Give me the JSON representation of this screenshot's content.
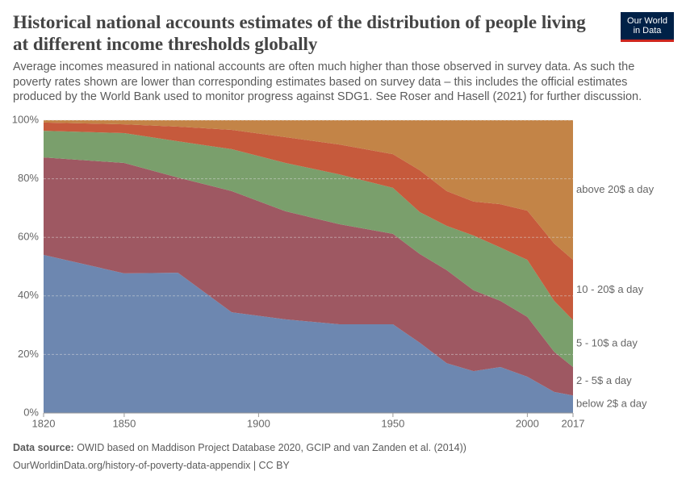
{
  "chart_data": {
    "type": "stacked-area",
    "title": "Historical national accounts estimates of the distribution of people living at different income thresholds globally",
    "subtitle": "Average incomes measured in national accounts are often much higher than those observed in survey data. As such the poverty rates shown are lower than corresponding estimates based on survey data – this includes the official estimates produced by the World Bank used to monitor progress against SDG1. See Roser and Hasell (2021) for further discussion.",
    "logo": [
      "Our World",
      "in Data"
    ],
    "x": [
      1820,
      1850,
      1870,
      1890,
      1910,
      1930,
      1950,
      1960,
      1970,
      1980,
      1990,
      2000,
      2010,
      2017
    ],
    "series": [
      {
        "name": "below 2$ a day",
        "color": "#6d87b0",
        "label_color": "#4c6a9c",
        "values": [
          54,
          47.7,
          47.9,
          34.4,
          32,
          30.3,
          30.3,
          24,
          17,
          14.3,
          15.7,
          12.4,
          7.2,
          6
        ]
      },
      {
        "name": "2 - 5$ a day",
        "color": "#9e5862",
        "label_color": "#883039",
        "values": [
          33.3,
          37.7,
          32.5,
          41.4,
          36.9,
          34.2,
          30.9,
          30.3,
          31.8,
          27.6,
          22.6,
          20.4,
          13.7,
          9.7
        ]
      },
      {
        "name": "5 - 10$ a day",
        "color": "#7a9f6c",
        "label_color": "#578145",
        "values": [
          9.1,
          10.2,
          12.4,
          14.3,
          16.5,
          17,
          15.7,
          14.3,
          15.1,
          18.7,
          18.2,
          19.5,
          17.4,
          16
        ]
      },
      {
        "name": "10 - 20$ a day",
        "color": "#c65a3c",
        "label_color": "#c05917",
        "values": [
          2.8,
          3,
          5,
          6.6,
          8.8,
          10.2,
          11.5,
          14.3,
          11.9,
          11.6,
          14.8,
          16.8,
          19.6,
          20.6
        ]
      },
      {
        "name": "above 20$ a day",
        "color": "#c38447",
        "label_color": "#b16214",
        "values": [
          0.8,
          1.4,
          2.2,
          3.3,
          5.8,
          8.3,
          11.6,
          17.1,
          24.2,
          27.8,
          28.7,
          30.9,
          42.1,
          47.7
        ]
      }
    ],
    "xlim": [
      1820,
      2017
    ],
    "xticks": [
      1820,
      1850,
      1900,
      1950,
      2000,
      2017
    ],
    "ylim": [
      0,
      100
    ],
    "yticks": [
      {
        "value": 0,
        "label": "0%"
      },
      {
        "value": 20,
        "label": "20%"
      },
      {
        "value": 40,
        "label": "40%"
      },
      {
        "value": 60,
        "label": "60%"
      },
      {
        "value": 80,
        "label": "80%"
      },
      {
        "value": 100,
        "label": "100%"
      }
    ],
    "grid": true,
    "source_label": "Data source:",
    "source_text": "OWID based on Maddison Project Database 2020, GCIP and van Zanden et al. (2014))",
    "url": "OurWorldinData.org/history-of-poverty-data-appendix | CC BY"
  }
}
